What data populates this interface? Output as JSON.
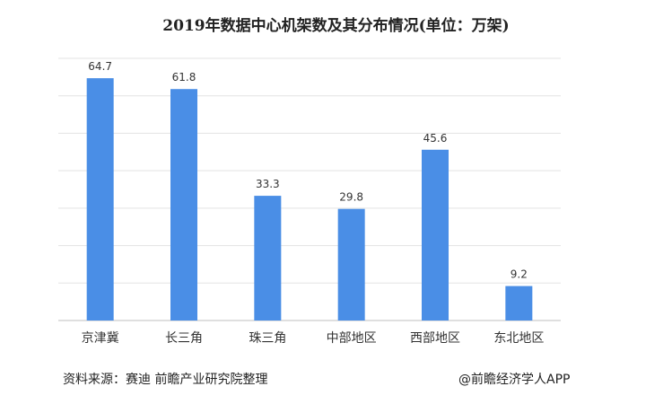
{
  "chart_data": {
    "type": "bar",
    "title": "2019年数据中心机架数及其分布情况(单位：万架)",
    "categories": [
      "京津冀",
      "长三角",
      "珠三角",
      "中部地区",
      "西部地区",
      "东北地区"
    ],
    "values": [
      64.7,
      61.8,
      33.3,
      29.8,
      45.6,
      9.2
    ],
    "ylim": [
      0,
      70
    ],
    "grid": true,
    "bar_color": "#4a8ee6",
    "xlabel": "",
    "ylabel": ""
  },
  "footer": {
    "source": "资料来源：赛迪 前瞻产业研究院整理",
    "credit": "@前瞻经济学人APP"
  }
}
